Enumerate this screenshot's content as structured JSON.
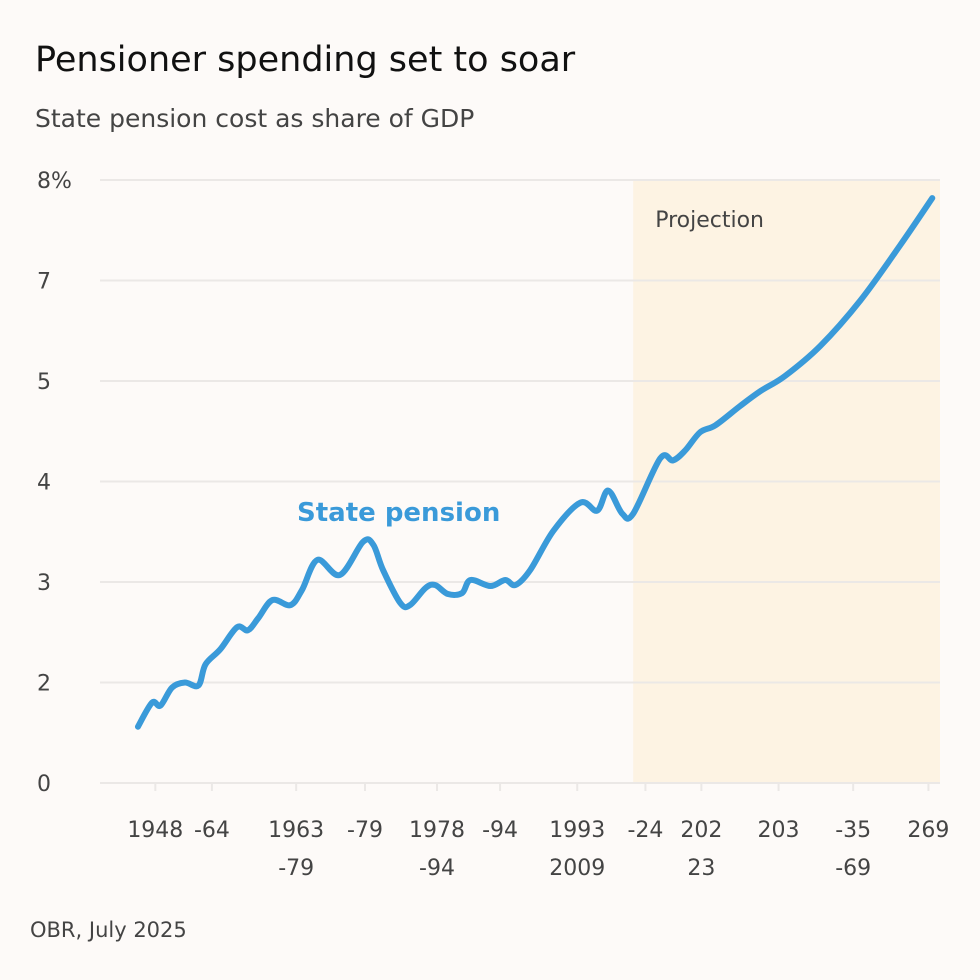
{
  "title": "Pensioner spending set to soar",
  "subtitle": "State pension cost as share of GDP",
  "source": "OBR, July 2025",
  "colors": {
    "background": "#fdfaf8",
    "line": "#3a9ad9",
    "projection_shade": "#fdf3e3",
    "grid": "#ebe8e6"
  },
  "chart_data": {
    "type": "line",
    "title": "Pensioner spending set to soar",
    "subtitle": "State pension cost as share of GDP",
    "grid": true,
    "yticks": [
      {
        "value": 8,
        "label": "8%"
      },
      {
        "value": 7,
        "label": "7"
      },
      {
        "value": 5,
        "label": "5"
      },
      {
        "value": 4,
        "label": "4"
      },
      {
        "value": 3,
        "label": "3"
      },
      {
        "value": 2,
        "label": "2"
      },
      {
        "value": 0,
        "label": "0"
      }
    ],
    "xlim": [
      1940.2,
      2070.8
    ],
    "xticks": [
      {
        "value": 1948.8,
        "label": [
          "1948"
        ]
      },
      {
        "value": 1957.6,
        "label": [
          "-64"
        ]
      },
      {
        "value": 1970.7,
        "label": [
          "1963",
          "-79"
        ]
      },
      {
        "value": 1981.4,
        "label": [
          "-79"
        ]
      },
      {
        "value": 1992.6,
        "label": [
          "1978",
          "-94"
        ]
      },
      {
        "value": 2002.4,
        "label": [
          "-94"
        ]
      },
      {
        "value": 2014.4,
        "label": [
          "1993",
          "2009"
        ]
      },
      {
        "value": 2025.0,
        "label": [
          "-24"
        ]
      },
      {
        "value": 2033.7,
        "label": [
          "202",
          "23"
        ]
      },
      {
        "value": 2045.7,
        "label": [
          "203"
        ]
      },
      {
        "value": 2057.3,
        "label": [
          "-35",
          "-69"
        ]
      },
      {
        "value": 2069.0,
        "label": [
          "269"
        ]
      }
    ],
    "projection": {
      "label": "Projection",
      "from": 2023.1,
      "to": 2070.8
    },
    "series": [
      {
        "name": "State pension",
        "x": [
          1946.1,
          1948.3,
          1949.6,
          1951.4,
          1953.4,
          1955.5,
          1956.6,
          1958.9,
          1961.5,
          1963.2,
          1964.8,
          1967.0,
          1969.8,
          1971.6,
          1974.0,
          1977.5,
          1981.1,
          1982.7,
          1984.2,
          1986.9,
          1988.4,
          1990.8,
          1992.3,
          1994.3,
          1996.5,
          1997.8,
          2000.9,
          2003.2,
          2004.8,
          2007.1,
          2010.7,
          2014.9,
          2017.5,
          2019.2,
          2021.4,
          2023.1,
          2027.3,
          2029.3,
          2031.2,
          2033.5,
          2035.9,
          2039.7,
          2042.9,
          2046.7,
          2052.2,
          2058.4,
          2064.6,
          2069.6
        ],
        "y": [
          1.12,
          1.6,
          1.54,
          1.9,
          2.0,
          1.94,
          2.18,
          2.33,
          2.55,
          2.52,
          2.64,
          2.82,
          2.77,
          2.92,
          3.22,
          3.07,
          3.4,
          3.37,
          3.12,
          2.79,
          2.77,
          2.94,
          2.97,
          2.88,
          2.89,
          3.02,
          2.96,
          3.02,
          2.97,
          3.12,
          3.51,
          3.79,
          3.71,
          3.91,
          3.68,
          3.68,
          4.23,
          4.21,
          4.31,
          4.49,
          4.56,
          4.75,
          4.9,
          5.1,
          5.7,
          6.6,
          7.35,
          7.82
        ]
      }
    ]
  }
}
